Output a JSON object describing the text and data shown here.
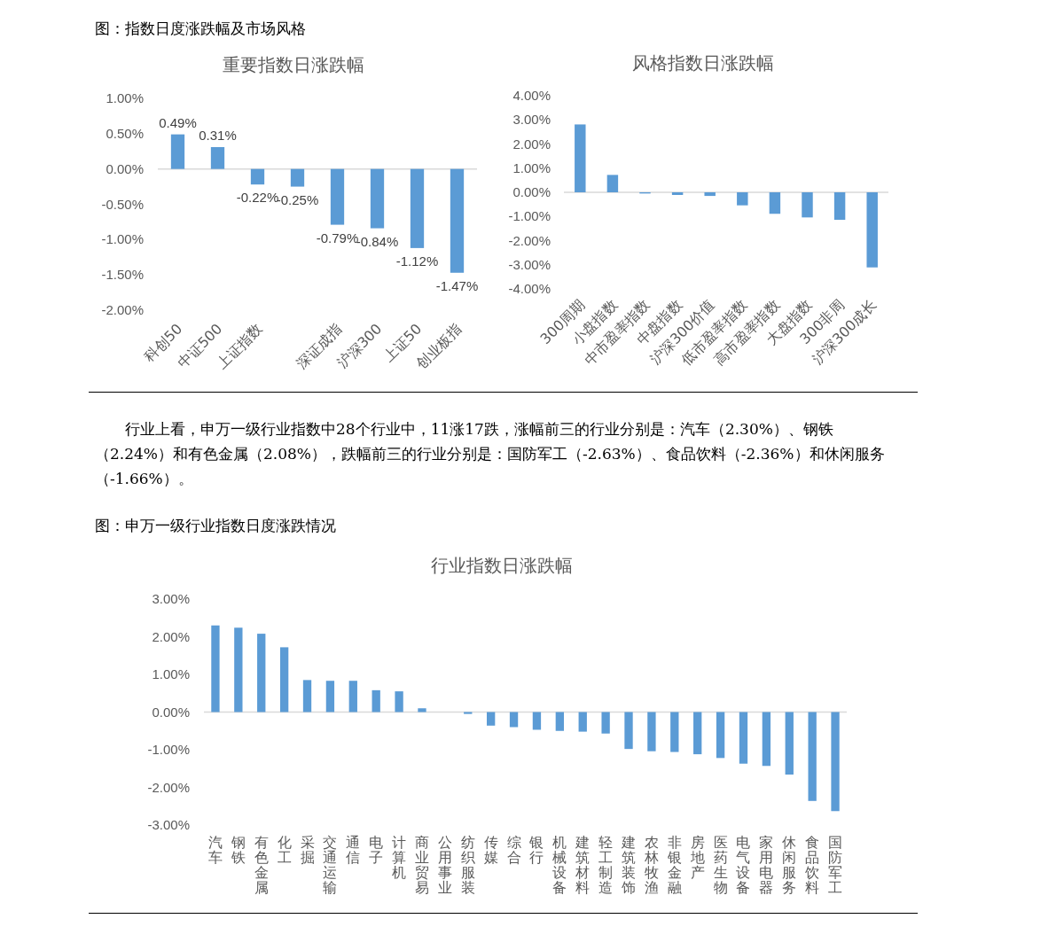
{
  "chart_data": [
    {
      "type": "bar",
      "title": "重要指数日涨跌幅",
      "annotations": [
        "图：指数日度涨跌幅及市场风格"
      ],
      "categories": [
        "科创50",
        "中证500",
        "上证指数",
        null,
        "深证成指",
        "沪深300",
        "上证50",
        "创业板指"
      ],
      "values": [
        0.49,
        0.31,
        -0.22,
        -0.25,
        -0.79,
        -0.84,
        -1.12,
        -1.47
      ],
      "value_labels": [
        "0.49%",
        "0.31%",
        "-0.22%",
        "-0.25%",
        "-0.79%",
        "-0.84%",
        "-1.12%",
        "-1.47%"
      ],
      "color": "#5b9bd5",
      "ylim": [
        -2,
        1
      ],
      "yticks": [
        {
          "value": -2,
          "label": "-2.00%"
        },
        {
          "value": -1.5,
          "label": "-1.50%"
        },
        {
          "value": -1,
          "label": "-1.00%"
        },
        {
          "value": -0.5,
          "label": "-0.50%"
        },
        {
          "value": 0,
          "label": "0.00%"
        },
        {
          "value": 0.5,
          "label": "0.50%"
        },
        {
          "value": 1,
          "label": "1.00%"
        }
      ]
    },
    {
      "type": "bar",
      "title": "风格指数日涨跌幅",
      "categories": [
        "300周期",
        "小盘指数",
        "中市盈率指数",
        "中盘指数",
        "沪深300价值",
        "低市盈率指数",
        "高市盈率指数",
        "大盘指数",
        "300非周",
        "沪深300成长"
      ],
      "values": [
        2.81,
        0.72,
        -0.05,
        -0.11,
        -0.15,
        -0.54,
        -0.89,
        -1.04,
        -1.14,
        -3.11
      ],
      "color": "#5b9bd5",
      "ylim": [
        -4,
        4
      ],
      "yticks": [
        {
          "value": -4,
          "label": "-4.00%"
        },
        {
          "value": -3,
          "label": "-3.00%"
        },
        {
          "value": -2,
          "label": "-2.00%"
        },
        {
          "value": -1,
          "label": "-1.00%"
        },
        {
          "value": 0,
          "label": "0.00%"
        },
        {
          "value": 1,
          "label": "1.00%"
        },
        {
          "value": 2,
          "label": "2.00%"
        },
        {
          "value": 3,
          "label": "3.00%"
        },
        {
          "value": 4,
          "label": "4.00%"
        }
      ]
    },
    {
      "type": "bar",
      "title": "行业指数日涨跌幅",
      "annotations": [
        "行业上看，申万一级行业指数中28个行业中，11涨17跌，涨幅前三的行业分别是：汽车（2.30%）、钢铁（2.24%）和有色金属（2.08%），跌幅前三的行业分别是：国防军工（-2.63%）、食品饮料（-2.36%）和休闲服务（-1.66%）。",
        "图：申万一级行业指数日度涨跌情况"
      ],
      "categories": [
        "汽车",
        "钢铁",
        "有色金属",
        "化工",
        "采掘",
        "交通运输",
        "通信",
        "电子",
        "计算机",
        "商业贸易",
        "公用事业",
        "纺织服装",
        "传媒",
        "综合",
        "银行",
        "机械设备",
        "建筑材料",
        "轻工制造",
        "建筑装饰",
        "农林牧渔",
        "非银金融",
        "房地产",
        "医药生物",
        "电气设备",
        "家用电器",
        "休闲服务",
        "食品饮料",
        "国防军工"
      ],
      "values": [
        2.3,
        2.24,
        2.08,
        1.72,
        0.85,
        0.83,
        0.83,
        0.58,
        0.55,
        0.1,
        0,
        -0.05,
        -0.36,
        -0.4,
        -0.47,
        -0.5,
        -0.52,
        -0.57,
        -0.98,
        -1.04,
        -1.06,
        -1.12,
        -1.22,
        -1.37,
        -1.43,
        -1.66,
        -2.36,
        -2.63
      ],
      "color": "#5b9bd5",
      "ylim": [
        -3,
        3
      ],
      "yticks": [
        {
          "value": -3,
          "label": "-3.00%"
        },
        {
          "value": -2,
          "label": "-2.00%"
        },
        {
          "value": -1,
          "label": "-1.00%"
        },
        {
          "value": 0,
          "label": "0.00%"
        },
        {
          "value": 1,
          "label": "1.00%"
        },
        {
          "value": 2,
          "label": "2.00%"
        },
        {
          "value": 3,
          "label": "3.00%"
        }
      ]
    }
  ]
}
